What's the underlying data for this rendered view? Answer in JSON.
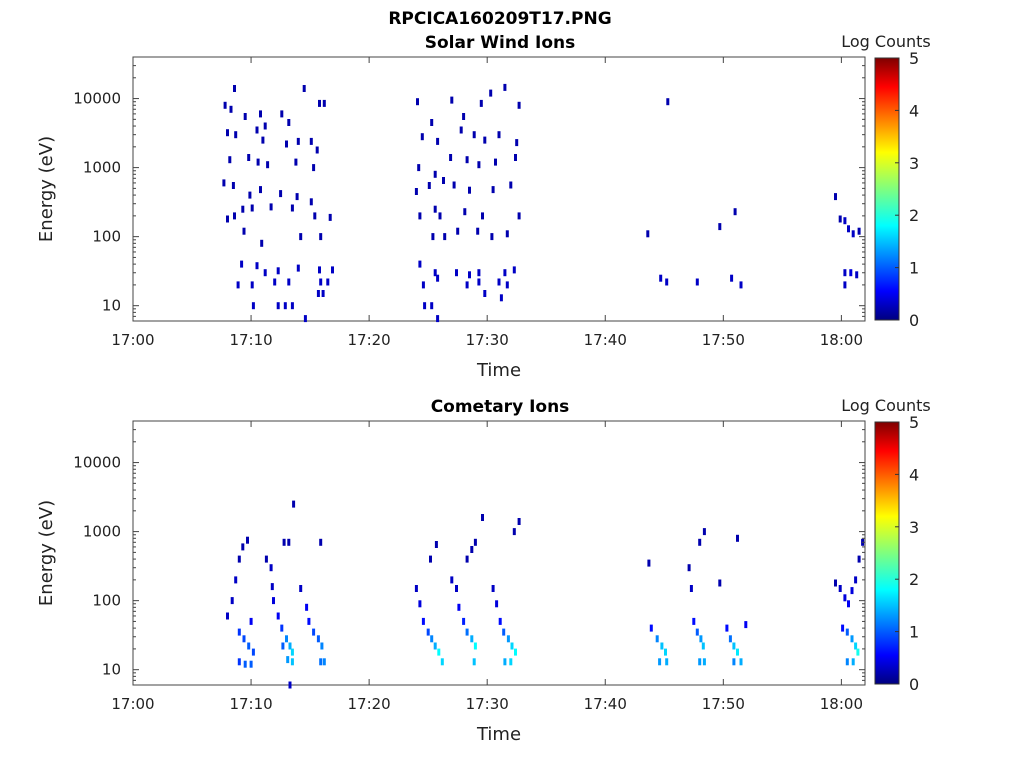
{
  "figure_title": "RPCICA160209T17.PNG",
  "chart_data": [
    {
      "type": "heatmap",
      "title": "Solar Wind Ions",
      "xlabel": "Time",
      "ylabel": "Energy (eV)",
      "colorbar_label": "Log Counts",
      "x_ticks": [
        "17:00",
        "17:10",
        "17:20",
        "17:30",
        "17:40",
        "17:50",
        "18:00"
      ],
      "x_range_minutes": [
        0,
        62
      ],
      "y_scale": "log",
      "y_range": [
        6,
        40000
      ],
      "y_ticks": [
        "10",
        "100",
        "1000",
        "10000"
      ],
      "colorbar_range": [
        0,
        5
      ],
      "colorbar_ticks": [
        "0",
        "1",
        "2",
        "3",
        "4",
        "5"
      ],
      "cells": [
        [
          7.8,
          8000,
          0.2
        ],
        [
          8.3,
          7000,
          0.2
        ],
        [
          8.6,
          14000,
          0.2
        ],
        [
          9.5,
          5500,
          0.2
        ],
        [
          10.8,
          6000,
          0.2
        ],
        [
          11.2,
          4000,
          0.2
        ],
        [
          12.6,
          6000,
          0.2
        ],
        [
          13.2,
          4500,
          0.2
        ],
        [
          14.5,
          14000,
          0.2
        ],
        [
          15.8,
          8500,
          0.2
        ],
        [
          16.2,
          8500,
          0.2
        ],
        [
          8.0,
          3200,
          0.2
        ],
        [
          8.7,
          3000,
          0.2
        ],
        [
          10.5,
          3500,
          0.2
        ],
        [
          11.0,
          2500,
          0.2
        ],
        [
          13.0,
          2200,
          0.2
        ],
        [
          14.0,
          2400,
          0.2
        ],
        [
          15.1,
          2400,
          0.2
        ],
        [
          15.6,
          1800,
          0.2
        ],
        [
          8.2,
          1300,
          0.2
        ],
        [
          9.8,
          1400,
          0.2
        ],
        [
          10.6,
          1200,
          0.2
        ],
        [
          11.4,
          1100,
          0.2
        ],
        [
          13.8,
          1200,
          0.2
        ],
        [
          15.3,
          1000,
          0.2
        ],
        [
          7.7,
          600,
          0.2
        ],
        [
          8.5,
          550,
          0.2
        ],
        [
          9.9,
          400,
          0.2
        ],
        [
          10.8,
          480,
          0.2
        ],
        [
          12.5,
          420,
          0.2
        ],
        [
          13.9,
          380,
          0.2
        ],
        [
          15.1,
          320,
          0.2
        ],
        [
          8.0,
          180,
          0.2
        ],
        [
          8.6,
          200,
          0.2
        ],
        [
          9.3,
          250,
          0.2
        ],
        [
          10.1,
          260,
          0.2
        ],
        [
          11.7,
          270,
          0.2
        ],
        [
          13.5,
          260,
          0.2
        ],
        [
          15.4,
          200,
          0.2
        ],
        [
          16.7,
          190,
          0.2
        ],
        [
          9.4,
          120,
          0.2
        ],
        [
          10.9,
          80,
          0.2
        ],
        [
          14.2,
          100,
          0.2
        ],
        [
          15.9,
          100,
          0.2
        ],
        [
          9.2,
          40,
          0.3
        ],
        [
          10.5,
          38,
          0.3
        ],
        [
          11.2,
          30,
          0.3
        ],
        [
          12.3,
          32,
          0.3
        ],
        [
          14.0,
          35,
          0.3
        ],
        [
          15.8,
          33,
          0.3
        ],
        [
          16.9,
          33,
          0.3
        ],
        [
          8.9,
          20,
          0.3
        ],
        [
          10.1,
          20,
          0.3
        ],
        [
          12.0,
          22,
          0.3
        ],
        [
          13.2,
          22,
          0.3
        ],
        [
          15.9,
          22,
          0.3
        ],
        [
          16.5,
          22,
          0.3
        ],
        [
          10.2,
          10,
          0.3
        ],
        [
          12.3,
          10,
          0.3
        ],
        [
          12.9,
          10,
          0.3
        ],
        [
          13.5,
          10,
          0.3
        ],
        [
          14.6,
          6.5,
          0.3
        ],
        [
          15.7,
          15,
          0.3
        ],
        [
          16.1,
          15,
          0.3
        ],
        [
          24.1,
          9000,
          0.2
        ],
        [
          25.3,
          4500,
          0.2
        ],
        [
          27.0,
          9500,
          0.2
        ],
        [
          28.0,
          5500,
          0.2
        ],
        [
          29.5,
          8500,
          0.2
        ],
        [
          30.3,
          12000,
          0.2
        ],
        [
          31.5,
          14500,
          0.2
        ],
        [
          32.7,
          8000,
          0.2
        ],
        [
          24.5,
          2800,
          0.2
        ],
        [
          25.8,
          2400,
          0.2
        ],
        [
          27.8,
          3500,
          0.2
        ],
        [
          28.9,
          3000,
          0.2
        ],
        [
          29.8,
          2500,
          0.2
        ],
        [
          31.0,
          3000,
          0.2
        ],
        [
          32.5,
          2300,
          0.2
        ],
        [
          24.2,
          1000,
          0.2
        ],
        [
          25.6,
          800,
          0.2
        ],
        [
          26.9,
          1400,
          0.2
        ],
        [
          28.3,
          1300,
          0.2
        ],
        [
          29.3,
          1100,
          0.2
        ],
        [
          30.7,
          1200,
          0.2
        ],
        [
          32.4,
          1400,
          0.2
        ],
        [
          24.0,
          450,
          0.2
        ],
        [
          25.1,
          550,
          0.2
        ],
        [
          26.3,
          650,
          0.2
        ],
        [
          27.2,
          560,
          0.2
        ],
        [
          28.5,
          470,
          0.2
        ],
        [
          30.5,
          480,
          0.2
        ],
        [
          32.0,
          560,
          0.2
        ],
        [
          24.3,
          200,
          0.2
        ],
        [
          25.6,
          250,
          0.2
        ],
        [
          26.0,
          200,
          0.2
        ],
        [
          28.1,
          230,
          0.2
        ],
        [
          29.6,
          200,
          0.2
        ],
        [
          32.7,
          200,
          0.2
        ],
        [
          25.4,
          100,
          0.2
        ],
        [
          26.4,
          100,
          0.2
        ],
        [
          27.5,
          120,
          0.2
        ],
        [
          29.2,
          120,
          0.2
        ],
        [
          30.4,
          100,
          0.2
        ],
        [
          31.7,
          110,
          0.2
        ],
        [
          24.3,
          40,
          0.3
        ],
        [
          25.6,
          30,
          0.3
        ],
        [
          27.4,
          30,
          0.3
        ],
        [
          28.5,
          28,
          0.3
        ],
        [
          29.3,
          30,
          0.3
        ],
        [
          31.5,
          30,
          0.3
        ],
        [
          32.3,
          33,
          0.3
        ],
        [
          24.6,
          20,
          0.3
        ],
        [
          25.8,
          25,
          0.3
        ],
        [
          28.3,
          20,
          0.3
        ],
        [
          29.3,
          22,
          0.3
        ],
        [
          31.0,
          22,
          0.3
        ],
        [
          31.7,
          20,
          0.3
        ],
        [
          24.7,
          10,
          0.3
        ],
        [
          25.3,
          10,
          0.3
        ],
        [
          29.8,
          15,
          0.3
        ],
        [
          31.2,
          13,
          0.3
        ],
        [
          25.8,
          6.5,
          0.3
        ],
        [
          45.3,
          9000,
          0.2
        ],
        [
          43.6,
          110,
          0.2
        ],
        [
          49.7,
          140,
          0.2
        ],
        [
          51.0,
          230,
          0.2
        ],
        [
          44.7,
          25,
          0.3
        ],
        [
          45.2,
          22,
          0.3
        ],
        [
          47.8,
          22,
          0.3
        ],
        [
          50.7,
          25,
          0.3
        ],
        [
          51.5,
          20,
          0.3
        ],
        [
          59.5,
          380,
          0.2
        ],
        [
          59.9,
          180,
          0.2
        ],
        [
          60.3,
          170,
          0.3
        ],
        [
          60.6,
          130,
          0.3
        ],
        [
          61.0,
          110,
          0.3
        ],
        [
          61.5,
          120,
          0.2
        ],
        [
          60.3,
          30,
          0.3
        ],
        [
          60.8,
          30,
          0.4
        ],
        [
          61.3,
          28,
          0.3
        ],
        [
          60.3,
          20,
          0.3
        ]
      ]
    },
    {
      "type": "heatmap",
      "title": "Cometary Ions",
      "xlabel": "Time",
      "ylabel": "Energy (eV)",
      "colorbar_label": "Log Counts",
      "x_ticks": [
        "17:00",
        "17:10",
        "17:20",
        "17:30",
        "17:40",
        "17:50",
        "18:00"
      ],
      "x_range_minutes": [
        0,
        62
      ],
      "y_scale": "log",
      "y_range": [
        6,
        40000
      ],
      "y_ticks": [
        "10",
        "100",
        "1000",
        "10000"
      ],
      "colorbar_range": [
        0,
        5
      ],
      "colorbar_ticks": [
        "0",
        "1",
        "2",
        "3",
        "4",
        "5"
      ],
      "cells": [
        [
          8.0,
          60,
          0.3
        ],
        [
          8.4,
          100,
          0.3
        ],
        [
          8.7,
          200,
          0.3
        ],
        [
          9.0,
          400,
          0.2
        ],
        [
          9.3,
          600,
          0.2
        ],
        [
          9.7,
          750,
          0.2
        ],
        [
          10.0,
          50,
          0.5
        ],
        [
          9.0,
          35,
          0.8
        ],
        [
          9.4,
          28,
          0.9
        ],
        [
          9.8,
          22,
          1.0
        ],
        [
          10.2,
          18,
          0.9
        ],
        [
          9.0,
          13,
          0.8
        ],
        [
          9.5,
          12,
          1.0
        ],
        [
          10.0,
          12,
          1.0
        ],
        [
          11.3,
          400,
          0.2
        ],
        [
          11.7,
          300,
          0.3
        ],
        [
          11.8,
          160,
          0.3
        ],
        [
          11.9,
          100,
          0.4
        ],
        [
          12.3,
          60,
          0.5
        ],
        [
          12.6,
          40,
          0.8
        ],
        [
          13.0,
          28,
          1.2
        ],
        [
          13.3,
          22,
          1.4
        ],
        [
          13.5,
          18,
          1.6
        ],
        [
          13.1,
          14,
          1.3
        ],
        [
          13.5,
          13,
          1.5
        ],
        [
          12.7,
          22,
          1.0
        ],
        [
          12.8,
          700,
          0.2
        ],
        [
          13.2,
          700,
          0.2
        ],
        [
          13.6,
          2500,
          0.2
        ],
        [
          14.2,
          150,
          0.3
        ],
        [
          14.7,
          80,
          0.5
        ],
        [
          14.9,
          50,
          0.6
        ],
        [
          15.3,
          35,
          0.9
        ],
        [
          15.7,
          28,
          1.0
        ],
        [
          16.0,
          22,
          1.2
        ],
        [
          15.9,
          13,
          1.1
        ],
        [
          16.2,
          13,
          1.2
        ],
        [
          15.9,
          700,
          0.2
        ],
        [
          13.3,
          6,
          0.3
        ],
        [
          24.0,
          150,
          0.3
        ],
        [
          24.3,
          90,
          0.4
        ],
        [
          24.6,
          50,
          0.6
        ],
        [
          25.0,
          35,
          0.9
        ],
        [
          25.3,
          28,
          1.2
        ],
        [
          25.6,
          22,
          1.4
        ],
        [
          25.9,
          18,
          1.8
        ],
        [
          26.2,
          13,
          1.6
        ],
        [
          25.2,
          400,
          0.2
        ],
        [
          25.7,
          650,
          0.2
        ],
        [
          27.0,
          200,
          0.3
        ],
        [
          27.4,
          150,
          0.3
        ],
        [
          27.6,
          80,
          0.5
        ],
        [
          28.0,
          50,
          0.7
        ],
        [
          28.3,
          35,
          1.1
        ],
        [
          28.7,
          28,
          1.4
        ],
        [
          29.0,
          22,
          1.8
        ],
        [
          28.9,
          13,
          1.5
        ],
        [
          28.3,
          400,
          0.2
        ],
        [
          28.7,
          550,
          0.2
        ],
        [
          29.0,
          700,
          0.2
        ],
        [
          29.6,
          1600,
          0.2
        ],
        [
          30.5,
          150,
          0.3
        ],
        [
          30.8,
          90,
          0.4
        ],
        [
          31.1,
          50,
          0.6
        ],
        [
          31.4,
          35,
          1.0
        ],
        [
          31.8,
          28,
          1.3
        ],
        [
          32.1,
          22,
          1.6
        ],
        [
          32.4,
          18,
          1.8
        ],
        [
          31.5,
          13,
          1.4
        ],
        [
          32.0,
          13,
          1.6
        ],
        [
          32.7,
          1400,
          0.2
        ],
        [
          32.3,
          1000,
          0.2
        ],
        [
          43.7,
          350,
          0.2
        ],
        [
          43.9,
          40,
          0.6
        ],
        [
          44.4,
          28,
          1.2
        ],
        [
          44.8,
          22,
          1.5
        ],
        [
          45.1,
          18,
          1.6
        ],
        [
          44.6,
          13,
          1.3
        ],
        [
          45.2,
          13,
          1.4
        ],
        [
          47.1,
          300,
          0.2
        ],
        [
          47.3,
          150,
          0.3
        ],
        [
          47.5,
          50,
          0.6
        ],
        [
          47.8,
          35,
          1.0
        ],
        [
          48.1,
          28,
          1.3
        ],
        [
          48.3,
          22,
          1.5
        ],
        [
          48.0,
          13,
          1.3
        ],
        [
          48.4,
          13,
          1.4
        ],
        [
          48.4,
          1000,
          0.2
        ],
        [
          48.0,
          700,
          0.2
        ],
        [
          49.7,
          180,
          0.2
        ],
        [
          50.3,
          40,
          0.6
        ],
        [
          50.6,
          28,
          1.1
        ],
        [
          50.9,
          22,
          1.5
        ],
        [
          51.2,
          18,
          1.7
        ],
        [
          51.5,
          13,
          1.4
        ],
        [
          50.9,
          13,
          1.2
        ],
        [
          51.2,
          800,
          0.2
        ],
        [
          51.9,
          45,
          0.5
        ],
        [
          59.5,
          180,
          0.2
        ],
        [
          59.9,
          150,
          0.3
        ],
        [
          60.3,
          110,
          0.4
        ],
        [
          60.6,
          90,
          0.5
        ],
        [
          60.9,
          140,
          0.4
        ],
        [
          61.2,
          200,
          0.3
        ],
        [
          61.5,
          400,
          0.2
        ],
        [
          61.8,
          700,
          0.2
        ],
        [
          60.1,
          40,
          0.6
        ],
        [
          60.5,
          35,
          1.0
        ],
        [
          60.9,
          28,
          1.3
        ],
        [
          61.2,
          22,
          1.6
        ],
        [
          61.4,
          18,
          1.9
        ],
        [
          60.5,
          13,
          1.2
        ],
        [
          61.0,
          13,
          1.4
        ]
      ]
    }
  ]
}
